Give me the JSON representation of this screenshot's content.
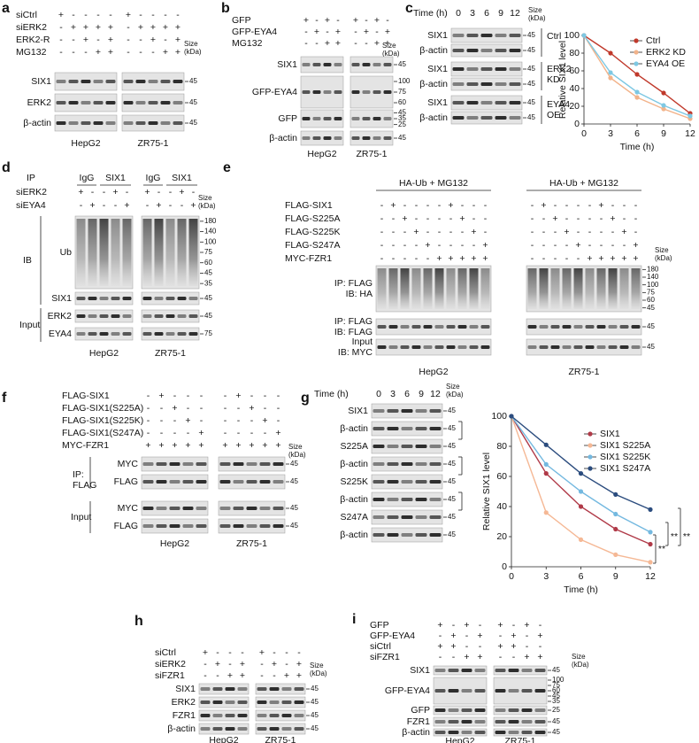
{
  "panels": [
    {
      "label": "a",
      "conditions": [
        {
          "name": "siCtrl",
          "signs": [
            "+",
            "-",
            "-",
            "-",
            "-",
            "+",
            "-",
            "-",
            "-",
            "-"
          ]
        },
        {
          "name": "siERK2",
          "signs": [
            "-",
            "+",
            "+",
            "+",
            "+",
            "-",
            "+",
            "+",
            "+",
            "+"
          ]
        },
        {
          "name": "ERK2-R",
          "signs": [
            "-",
            "-",
            "+",
            "-",
            "+",
            "-",
            "-",
            "+",
            "-",
            "+"
          ]
        },
        {
          "name": "MG132",
          "signs": [
            "-",
            "-",
            "-",
            "+",
            "+",
            "-",
            "-",
            "-",
            "+",
            "+"
          ]
        }
      ],
      "size_label": [
        "Size",
        "(kDa)"
      ],
      "blots": [
        {
          "name": "SIX1",
          "markers": [
            45
          ]
        },
        {
          "name": "ERK2",
          "markers": [
            45
          ]
        },
        {
          "name": "β-actin",
          "markers": [
            45
          ]
        }
      ],
      "groups": [
        "HepG2",
        "ZR75-1"
      ]
    },
    {
      "label": "b",
      "conditions": [
        {
          "name": "GFP",
          "signs": [
            "+",
            "-",
            "+",
            "-",
            "+",
            "-",
            "+",
            "-"
          ]
        },
        {
          "name": "GFP-EYA4",
          "signs": [
            "-",
            "+",
            "-",
            "+",
            "-",
            "+",
            "-",
            "+"
          ]
        },
        {
          "name": "MG132",
          "signs": [
            "-",
            "-",
            "+",
            "+",
            "-",
            "-",
            "+",
            "+"
          ]
        }
      ],
      "size_label": [
        "Size",
        "(kDa)"
      ],
      "blots": [
        {
          "name": "SIX1",
          "markers": [
            45
          ]
        },
        {
          "name": "GFP-EYA4",
          "markers": [
            100,
            75,
            60
          ]
        },
        {
          "name": "GFP",
          "markers": [
            45,
            35,
            25
          ]
        },
        {
          "name": "β-actin",
          "markers": [
            45
          ]
        }
      ],
      "groups": [
        "HepG2",
        "ZR75-1"
      ]
    },
    {
      "label": "c",
      "time_label": "Time (h)",
      "times": [
        0,
        3,
        6,
        9,
        12
      ],
      "size_label": [
        "Size",
        "(kDa)"
      ],
      "blots": [
        {
          "name": "SIX1",
          "markers": [
            45
          ]
        },
        {
          "name": "β-actin",
          "markers": [
            45
          ]
        },
        {
          "name": "SIX1",
          "markers": [
            45
          ]
        },
        {
          "name": "β-actin",
          "markers": [
            45
          ]
        },
        {
          "name": "SIX1",
          "markers": [
            45
          ]
        },
        {
          "name": "β-actin",
          "markers": [
            45
          ]
        }
      ],
      "side_labels": [
        {
          "lines": [
            "Ctrl"
          ]
        },
        {
          "lines": [
            "ERK2",
            "KD"
          ]
        },
        {
          "lines": [
            "EYA4",
            "OE"
          ]
        }
      ]
    },
    {
      "label": "d",
      "ip_label": "IP",
      "ip_groups": [
        "IgG",
        "SIX1"
      ],
      "conditions": [
        {
          "name": "siERK2",
          "signs": [
            "+",
            "-",
            "-",
            "+",
            "-",
            "+",
            "-",
            "-",
            "+",
            "-"
          ]
        },
        {
          "name": "siEYA4",
          "signs": [
            "-",
            "+",
            "-",
            "-",
            "+",
            "-",
            "+",
            "-",
            "-",
            "+"
          ]
        }
      ],
      "size_label": [
        "Size",
        "(kDa)"
      ],
      "blots": [
        {
          "name": "Ub",
          "markers": [
            180,
            140,
            100,
            75,
            60,
            45,
            35
          ]
        },
        {
          "name": "SIX1",
          "markers": [
            45
          ]
        },
        {
          "name": "ERK2",
          "markers": [
            45
          ]
        },
        {
          "name": "EYA4",
          "markers": [
            75
          ]
        }
      ],
      "side_labels": [
        {
          "lines": [
            "IB"
          ]
        },
        {
          "lines": [
            "Input"
          ]
        }
      ],
      "groups": [
        "HepG2",
        "ZR75-1"
      ]
    },
    {
      "label": "e",
      "headers": [
        "HA-Ub + MG132",
        "HA-Ub + MG132"
      ],
      "conditions": [
        {
          "name": "FLAG-SIX1",
          "signs": [
            "-",
            "+",
            "-",
            "-",
            "-",
            "-",
            "+",
            "-",
            "-",
            "-",
            "-",
            "+",
            "-",
            "-",
            "-",
            "-",
            "+",
            "-",
            "-",
            "-"
          ]
        },
        {
          "name": "FLAG-S225A",
          "signs": [
            "-",
            "-",
            "+",
            "-",
            "-",
            "-",
            "-",
            "+",
            "-",
            "-",
            "-",
            "-",
            "+",
            "-",
            "-",
            "-",
            "-",
            "+",
            "-",
            "-"
          ]
        },
        {
          "name": "FLAG-S225K",
          "signs": [
            "-",
            "-",
            "-",
            "+",
            "-",
            "-",
            "-",
            "-",
            "+",
            "-",
            "-",
            "-",
            "-",
            "+",
            "-",
            "-",
            "-",
            "-",
            "+",
            "-"
          ]
        },
        {
          "name": "FLAG-S247A",
          "signs": [
            "-",
            "-",
            "-",
            "-",
            "+",
            "-",
            "-",
            "-",
            "-",
            "+",
            "-",
            "-",
            "-",
            "-",
            "+",
            "-",
            "-",
            "-",
            "-",
            "+"
          ]
        },
        {
          "name": "MYC-FZR1",
          "signs": [
            "-",
            "-",
            "-",
            "-",
            "-",
            "+",
            "+",
            "+",
            "+",
            "+",
            "-",
            "-",
            "-",
            "-",
            "-",
            "+",
            "+",
            "+",
            "+",
            "+"
          ]
        }
      ],
      "size_label": [
        "Size",
        "(kDa)"
      ],
      "blots": [
        {
          "name": [
            "IP: FLAG",
            "IB: HA"
          ],
          "markers": [
            180,
            140,
            100,
            75,
            60,
            45
          ]
        },
        {
          "name": [
            "IP: FLAG",
            "IB: FLAG"
          ],
          "markers": [
            45
          ]
        },
        {
          "name": [
            "Input",
            "IB: MYC"
          ],
          "markers": [
            45
          ]
        }
      ],
      "groups": [
        "HepG2",
        "ZR75-1"
      ]
    },
    {
      "label": "f",
      "conditions": [
        {
          "name": "FLAG-SIX1",
          "signs": [
            "-",
            "+",
            "-",
            "-",
            "-",
            "-",
            "+",
            "-",
            "-",
            "-"
          ]
        },
        {
          "name": "FLAG-SIX1(S225A)",
          "signs": [
            "-",
            "-",
            "+",
            "-",
            "-",
            "-",
            "-",
            "+",
            "-",
            "-"
          ]
        },
        {
          "name": "FLAG-SIX1(S225K)",
          "signs": [
            "-",
            "-",
            "-",
            "+",
            "-",
            "-",
            "-",
            "-",
            "+",
            "-"
          ]
        },
        {
          "name": "FLAG-SIX1(S247A)",
          "signs": [
            "-",
            "-",
            "-",
            "-",
            "+",
            "-",
            "-",
            "-",
            "-",
            "+"
          ]
        },
        {
          "name": "MYC-FZR1",
          "signs": [
            "+",
            "+",
            "+",
            "+",
            "+",
            "+",
            "+",
            "+",
            "+",
            "+"
          ]
        }
      ],
      "size_label": [
        "Size",
        "(kDa)"
      ],
      "blots": [
        {
          "name": "MYC",
          "markers": [
            45
          ]
        },
        {
          "name": "FLAG",
          "markers": [
            45
          ]
        },
        {
          "name": "MYC",
          "markers": [
            45
          ]
        },
        {
          "name": "FLAG",
          "markers": [
            45
          ]
        }
      ],
      "side_labels": [
        {
          "lines": [
            "IP:",
            "FLAG"
          ]
        },
        {
          "lines": [
            "Input"
          ]
        }
      ],
      "groups": [
        "HepG2",
        "ZR75-1"
      ]
    },
    {
      "label": "g",
      "time_label": "Time (h)",
      "times": [
        0,
        3,
        6,
        9,
        12
      ],
      "size_label": [
        "Size",
        "(kDa)"
      ],
      "blots": [
        {
          "name": "SIX1",
          "markers": [
            45
          ]
        },
        {
          "name": "β-actin",
          "markers": [
            45
          ]
        },
        {
          "name": "S225A",
          "markers": [
            45
          ]
        },
        {
          "name": "β-actin",
          "markers": [
            45
          ]
        },
        {
          "name": "S225K",
          "markers": [
            45
          ]
        },
        {
          "name": "β-actin",
          "markers": [
            45
          ]
        },
        {
          "name": "S247A",
          "markers": [
            45
          ]
        },
        {
          "name": "β-actin",
          "markers": [
            45
          ]
        }
      ]
    },
    {
      "label": "h",
      "conditions": [
        {
          "name": "siCtrl",
          "signs": [
            "+",
            "-",
            "-",
            "-",
            "+",
            "-",
            "-",
            "-"
          ]
        },
        {
          "name": "siERK2",
          "signs": [
            "-",
            "+",
            "-",
            "+",
            "-",
            "+",
            "-",
            "+"
          ]
        },
        {
          "name": "siFZR1",
          "signs": [
            "-",
            "-",
            "+",
            "+",
            "-",
            "-",
            "+",
            "+"
          ]
        }
      ],
      "size_label": [
        "Size",
        "(kDa)"
      ],
      "blots": [
        {
          "name": "SIX1",
          "markers": [
            45
          ]
        },
        {
          "name": "ERK2",
          "markers": [
            45
          ]
        },
        {
          "name": "FZR1",
          "markers": [
            45
          ]
        },
        {
          "name": "β-actin",
          "markers": [
            45
          ]
        }
      ],
      "groups": [
        "HepG2",
        "ZR75-1"
      ]
    },
    {
      "label": "i",
      "conditions": [
        {
          "name": "GFP",
          "signs": [
            "+",
            "-",
            "+",
            "-",
            "+",
            "-",
            "+",
            "-"
          ]
        },
        {
          "name": "GFP-EYA4",
          "signs": [
            "-",
            "+",
            "-",
            "+",
            "-",
            "+",
            "-",
            "+"
          ]
        },
        {
          "name": "siCtrl",
          "signs": [
            "+",
            "+",
            "-",
            "-",
            "+",
            "+",
            "-",
            "-"
          ]
        },
        {
          "name": "siFZR1",
          "signs": [
            "-",
            "-",
            "+",
            "+",
            "-",
            "-",
            "+",
            "+"
          ]
        }
      ],
      "size_label": [
        "Size",
        "(kDa)"
      ],
      "blots": [
        {
          "name": "SIX1",
          "markers": [
            45
          ]
        },
        {
          "name": "GFP-EYA4",
          "markers": [
            100,
            75,
            60,
            45,
            35
          ]
        },
        {
          "name": "GFP",
          "markers": [
            25
          ]
        },
        {
          "name": "FZR1",
          "markers": [
            45
          ]
        },
        {
          "name": "β-actin",
          "markers": [
            45
          ]
        }
      ],
      "groups": [
        "HepG2",
        "ZR75-1"
      ]
    }
  ],
  "chart_data": [
    {
      "type": "line",
      "xlabel": "Time (h)",
      "ylabel": "Relative SIX1 level",
      "x": [
        0,
        3,
        6,
        9,
        12
      ],
      "xlim": [
        0,
        12
      ],
      "xticks": [
        0,
        3,
        6,
        9,
        12
      ],
      "ylim": [
        0,
        100
      ],
      "yticks": [
        0,
        20,
        40,
        60,
        80,
        100
      ],
      "series": [
        {
          "name": "Ctrl",
          "color": "#c0392b",
          "values": [
            100,
            80,
            56,
            35,
            12
          ]
        },
        {
          "name": "ERK2 KD",
          "color": "#f2b38a",
          "values": [
            100,
            52,
            30,
            17,
            6
          ]
        },
        {
          "name": "EYA4 OE",
          "color": "#7ec8e3",
          "values": [
            100,
            58,
            36,
            21,
            9
          ]
        }
      ]
    },
    {
      "type": "line",
      "xlabel": "Time (h)",
      "ylabel": "Relative SIX1 level",
      "x": [
        0,
        3,
        6,
        9,
        12
      ],
      "xlim": [
        0,
        12
      ],
      "xticks": [
        0,
        3,
        6,
        9,
        12
      ],
      "ylim": [
        0,
        100
      ],
      "yticks": [
        0,
        20,
        40,
        60,
        80,
        100
      ],
      "series": [
        {
          "name": "SIX1",
          "color": "#b03a48",
          "values": [
            100,
            62,
            40,
            25,
            15
          ]
        },
        {
          "name": "SIX1 S225A",
          "color": "#f5b895",
          "values": [
            100,
            36,
            18,
            8,
            3
          ]
        },
        {
          "name": "SIX1 S225K",
          "color": "#74b9e0",
          "values": [
            100,
            68,
            50,
            35,
            23
          ]
        },
        {
          "name": "SIX1 S247A",
          "color": "#2b4c7e",
          "values": [
            100,
            81,
            62,
            48,
            38
          ]
        }
      ],
      "annotations": [
        "**",
        "**",
        "**"
      ]
    }
  ]
}
